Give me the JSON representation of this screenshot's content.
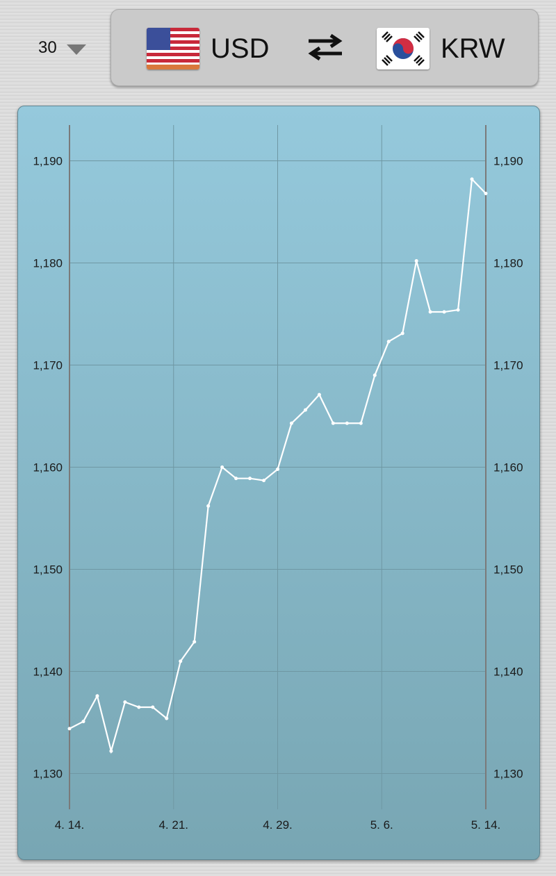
{
  "period": {
    "value": "30"
  },
  "currency_pair": {
    "from": {
      "code": "USD",
      "flag": "us-flag-icon"
    },
    "to": {
      "code": "KRW",
      "flag": "kr-flag-icon"
    },
    "swap_icon": "swap-arrows-icon"
  },
  "chart_data": {
    "type": "line",
    "x_tick_labels": [
      "4. 14.",
      "4. 21.",
      "4. 29.",
      "5. 6.",
      "5. 14."
    ],
    "y_tick_values": [
      1130,
      1140,
      1150,
      1160,
      1170,
      1180,
      1190
    ],
    "y_tick_labels": [
      "1,130",
      "1,140",
      "1,150",
      "1,160",
      "1,170",
      "1,180",
      "1,190"
    ],
    "ylim": [
      1126.5,
      1193.5
    ],
    "grid": true,
    "line_color": "#ffffff",
    "values": [
      1134.4,
      1135.1,
      1137.6,
      1132.2,
      1137.0,
      1136.5,
      1136.5,
      1135.4,
      1141.0,
      1142.9,
      1156.2,
      1160.0,
      1158.9,
      1158.9,
      1158.7,
      1159.8,
      1164.3,
      1165.6,
      1167.1,
      1164.3,
      1164.3,
      1164.3,
      1169.0,
      1172.3,
      1173.1,
      1180.2,
      1175.2,
      1175.2,
      1175.4,
      1188.2,
      1186.8
    ]
  }
}
